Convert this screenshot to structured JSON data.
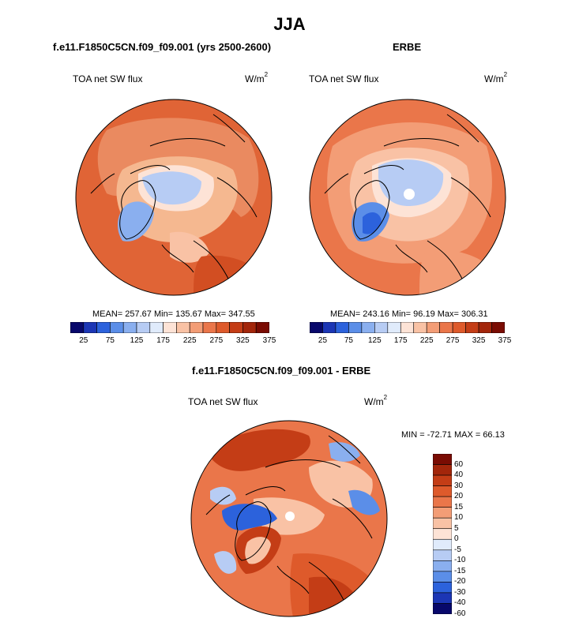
{
  "title": "JJA",
  "panels": [
    {
      "id": "model",
      "title": "f.e11.F1850C5CN.f09_f09.001 (yrs 2500-2600)",
      "left_label": "TOA net SW flux",
      "units_base": "W/m",
      "units_sup": "2",
      "stats": "MEAN= 257.67  Min= 135.67  Max= 347.55"
    },
    {
      "id": "obs",
      "title": "ERBE",
      "left_label": "TOA net SW flux",
      "units_base": "W/m",
      "units_sup": "2",
      "stats": "MEAN= 243.16  Min=  96.19  Max= 306.31"
    },
    {
      "id": "diff",
      "title": "f.e11.F1850C5CN.f09_f09.001 - ERBE",
      "left_label": "TOA net SW flux",
      "units_base": "W/m",
      "units_sup": "2",
      "stats": "MIN = -72.71 MAX =  66.13"
    }
  ],
  "colorbar_abs": {
    "colors": [
      "#08086b",
      "#1c36b5",
      "#2c62dc",
      "#5b8ee8",
      "#8aafef",
      "#b7ccf4",
      "#e0ebfb",
      "#fde3d6",
      "#f9c2a5",
      "#f39d76",
      "#ea764a",
      "#de5a2b",
      "#c43d16",
      "#a3260b",
      "#7a0c03"
    ],
    "ticks": [
      "25",
      "75",
      "125",
      "175",
      "225",
      "275",
      "325",
      "375"
    ]
  },
  "colorbar_diff": {
    "colors": [
      "#7a0c03",
      "#a3260b",
      "#c43d16",
      "#de5a2b",
      "#ea764a",
      "#f39d76",
      "#f9c2a5",
      "#fde3d6",
      "#e0ebfb",
      "#b7ccf4",
      "#8aafef",
      "#5b8ee8",
      "#2c62dc",
      "#1c36b5",
      "#08086b"
    ],
    "ticks": [
      "60",
      "40",
      "30",
      "20",
      "15",
      "10",
      "5",
      "0",
      "-5",
      "-10",
      "-15",
      "-20",
      "-30",
      "-40",
      "-60"
    ]
  },
  "chart_data": [
    {
      "type": "heatmap",
      "title": "f.e11.F1850C5CN.f09_f09.001 (yrs 2500-2600)",
      "variable": "TOA net SW flux",
      "units": "W/m2",
      "projection": "north polar stereographic",
      "mean": 257.67,
      "min": 135.67,
      "max": 347.55,
      "levels": [
        25,
        50,
        75,
        100,
        125,
        150,
        175,
        200,
        225,
        250,
        275,
        300,
        325,
        350,
        375
      ]
    },
    {
      "type": "heatmap",
      "title": "ERBE",
      "variable": "TOA net SW flux",
      "units": "W/m2",
      "projection": "north polar stereographic",
      "mean": 243.16,
      "min": 96.19,
      "max": 306.31,
      "levels": [
        25,
        50,
        75,
        100,
        125,
        150,
        175,
        200,
        225,
        250,
        275,
        300,
        325,
        350,
        375
      ]
    },
    {
      "type": "heatmap",
      "title": "f.e11.F1850C5CN.f09_f09.001 - ERBE",
      "variable": "TOA net SW flux",
      "units": "W/m2",
      "projection": "north polar stereographic",
      "min": -72.71,
      "max": 66.13,
      "levels": [
        -60,
        -40,
        -30,
        -20,
        -15,
        -10,
        -5,
        0,
        5,
        10,
        15,
        20,
        30,
        40,
        60
      ]
    }
  ]
}
